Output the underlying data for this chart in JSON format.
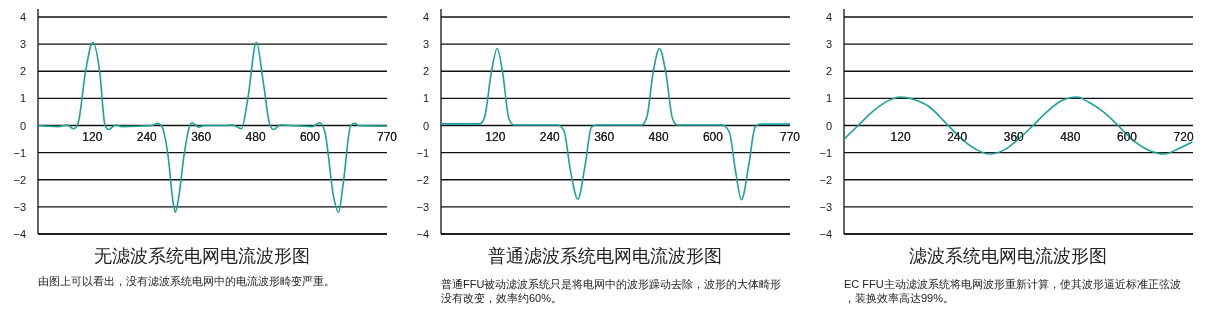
{
  "chart_data": [
    {
      "type": "line",
      "title": "无滤波系统电网电流波形图",
      "annotations": [
        "由图上可以看出，没有滤波系统电网中的电流波形畸变严重。"
      ],
      "xlim": [
        0,
        770
      ],
      "xticks": [
        120,
        240,
        360,
        480,
        600,
        770
      ],
      "ylim": [
        -4,
        4
      ],
      "yticks": [
        -4,
        -3,
        -2,
        -1,
        0,
        1,
        2,
        3,
        4
      ],
      "grid": "y",
      "marker": "none",
      "series": [
        {
          "color": "#1aa39a",
          "x": [
            0,
            44,
            65,
            78,
            88,
            105,
            121,
            136,
            148,
            156,
            167,
            173,
            184,
            252,
            263,
            272,
            286,
            299,
            303,
            310,
            323,
            335,
            340,
            354,
            367,
            408,
            429,
            449,
            463,
            482,
            497,
            512,
            520,
            534,
            605,
            622,
            633,
            653,
            663,
            673,
            690,
            699,
            707,
            770
          ],
          "values": [
            0,
            -0.04,
            0.02,
            -0.12,
            0.06,
            2.0,
            3.07,
            2.0,
            0,
            -0.15,
            -0.02,
            0.02,
            -0.04,
            0,
            0.08,
            0,
            -1.0,
            -2.93,
            -3.2,
            -2.7,
            -1.0,
            0,
            0.1,
            -0.06,
            0,
            0,
            0.02,
            -0.12,
            1.0,
            3.07,
            1.6,
            0,
            -0.15,
            0.02,
            -0.04,
            0.1,
            -0.25,
            -2.7,
            -3.2,
            -2.2,
            0,
            0.08,
            0,
            -0.02
          ]
        }
      ]
    },
    {
      "type": "line",
      "title": "普通滤波系统电网电流波形图",
      "annotations": [
        "普通FFU被动滤波系统只是将电网中的波形躁动去除，波形的大体畸形没有改变，效率约60%。"
      ],
      "xlim": [
        0,
        770
      ],
      "xticks": [
        120,
        240,
        360,
        480,
        600,
        770
      ],
      "ylim": [
        -4,
        4
      ],
      "yticks": [
        -4,
        -3,
        -2,
        -1,
        0,
        1,
        2,
        3,
        4
      ],
      "grid": "y",
      "marker": "none",
      "series": [
        {
          "color": "#1aa39a",
          "x": [
            0,
            86,
            96,
            111,
            124,
            136,
            150,
            161,
            257,
            271,
            286,
            302,
            318,
            332,
            343,
            443,
            454,
            468,
            482,
            496,
            511,
            521,
            621,
            636,
            650,
            663,
            679,
            693,
            704,
            770
          ],
          "values": [
            0.06,
            0.06,
            0.3,
            1.95,
            2.84,
            1.95,
            0.24,
            0.02,
            0.02,
            -0.18,
            -1.7,
            -2.72,
            -1.46,
            -0.06,
            0.02,
            0.02,
            0.3,
            1.95,
            2.84,
            1.95,
            0.24,
            0.02,
            0.02,
            -0.24,
            -1.7,
            -2.74,
            -1.46,
            -0.06,
            0.05,
            0.05
          ]
        }
      ]
    },
    {
      "type": "line",
      "title": "滤波系统电网电流波形图",
      "annotations": [
        "EC FFU主动滤波系统将电网波形重新计算，使其波形逼近标准正弦波，装换效率高达99%。"
      ],
      "xlim": [
        0,
        740
      ],
      "xticks": [
        120,
        240,
        360,
        480,
        600,
        720
      ],
      "ylim": [
        -4,
        4
      ],
      "yticks": [
        -4,
        -3,
        -2,
        -1,
        0,
        1,
        2,
        3,
        4
      ],
      "grid": "y",
      "marker": "none",
      "series": [
        {
          "color": "#1aa39a",
          "x": [
            0,
            30,
            60,
            90,
            120,
            150,
            180,
            210,
            221,
            250,
            280,
            308,
            340,
            370,
            401,
            430,
            460,
            494,
            520,
            550,
            581,
            610,
            645,
            679,
            710,
            739
          ],
          "values": [
            -0.5,
            0,
            0.5,
            0.88,
            1.05,
            0.95,
            0.7,
            0.2,
            0,
            -0.5,
            -0.88,
            -1.05,
            -0.9,
            -0.5,
            0,
            0.5,
            0.9,
            1.05,
            0.85,
            0.5,
            0,
            -0.5,
            -0.9,
            -1.05,
            -0.85,
            -0.6
          ]
        }
      ]
    }
  ]
}
